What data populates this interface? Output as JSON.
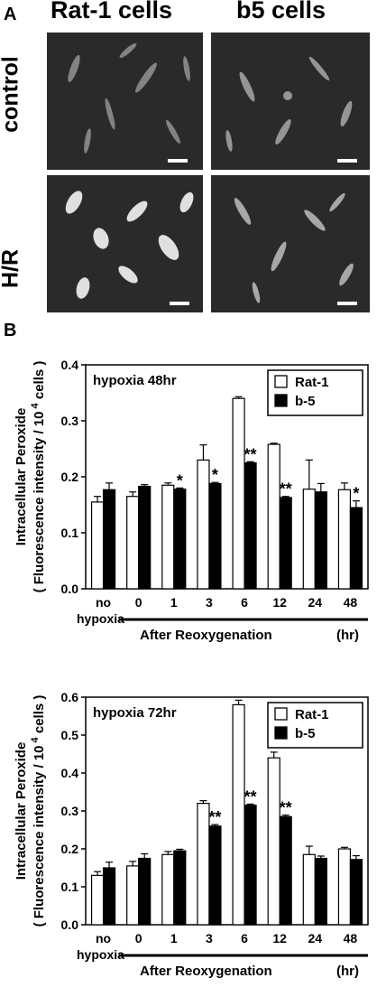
{
  "panel_a": {
    "letter": "A",
    "col_labels": [
      "Rat-1 cells",
      "b5 cells"
    ],
    "row_labels": [
      "control",
      "H/R"
    ]
  },
  "panel_b": {
    "letter": "B"
  },
  "chart_data": [
    {
      "type": "bar",
      "title": "hypoxia 48hr",
      "ylabel_line1": "Intracellular Peroxide",
      "ylabel_line2": "( Fluorescence intensity / 10",
      "ylabel_sup": "4",
      "ylabel_tail": "cells )",
      "ylim": [
        0,
        0.4
      ],
      "yticks": [
        "0.0",
        "0.1",
        "0.2",
        "0.3",
        "0.4"
      ],
      "categories": [
        "no",
        "0",
        "1",
        "3",
        "6",
        "12",
        "24",
        "48"
      ],
      "cat0_line2": "hypoxia",
      "xlabel": "After Reoxygenation",
      "xunit": "(hr)",
      "series": [
        {
          "name": "Rat-1",
          "color": "#ffffff",
          "values": [
            0.155,
            0.165,
            0.185,
            0.23,
            0.34,
            0.258,
            0.178,
            0.177
          ],
          "errors": [
            0.01,
            0.008,
            0.004,
            0.027,
            0.003,
            0.002,
            0.052,
            0.012
          ]
        },
        {
          "name": "b-5",
          "color": "#000000",
          "values": [
            0.177,
            0.183,
            0.178,
            0.188,
            0.225,
            0.163,
            0.173,
            0.145
          ],
          "errors": [
            0.012,
            0.003,
            0.002,
            0.002,
            0.002,
            0.002,
            0.015,
            0.012
          ]
        }
      ],
      "annotations": [
        "",
        "",
        "*",
        "*",
        "**",
        "**",
        "",
        "*"
      ]
    },
    {
      "type": "bar",
      "title": "hypoxia 72hr",
      "ylabel_line1": "Intracellular Peroxide",
      "ylabel_line2": "( Fluorescence intensity / 10",
      "ylabel_sup": "4",
      "ylabel_tail": "cells )",
      "ylim": [
        0,
        0.6
      ],
      "yticks": [
        "0.0",
        "0.1",
        "0.2",
        "0.3",
        "0.4",
        "0.5",
        "0.6"
      ],
      "categories": [
        "no",
        "0",
        "1",
        "3",
        "6",
        "12",
        "24",
        "48"
      ],
      "cat0_line2": "hypoxia",
      "xlabel": "After Reoxygenation",
      "xunit": "(hr)",
      "series": [
        {
          "name": "Rat-1",
          "color": "#ffffff",
          "values": [
            0.13,
            0.155,
            0.185,
            0.32,
            0.58,
            0.44,
            0.185,
            0.2
          ],
          "errors": [
            0.01,
            0.012,
            0.008,
            0.007,
            0.012,
            0.015,
            0.022,
            0.004
          ]
        },
        {
          "name": "b-5",
          "color": "#000000",
          "values": [
            0.15,
            0.175,
            0.195,
            0.26,
            0.315,
            0.285,
            0.175,
            0.172
          ],
          "errors": [
            0.015,
            0.012,
            0.004,
            0.004,
            0.003,
            0.004,
            0.006,
            0.01
          ]
        }
      ],
      "annotations": [
        "",
        "",
        "",
        "**",
        "**",
        "**",
        "",
        ""
      ]
    }
  ]
}
